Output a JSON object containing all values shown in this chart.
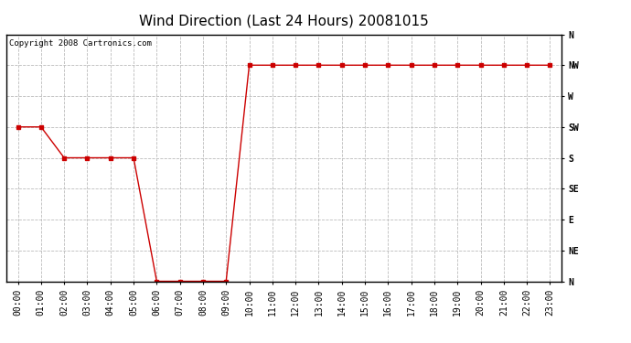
{
  "title": "Wind Direction (Last 24 Hours) 20081015",
  "copyright_text": "Copyright 2008 Cartronics.com",
  "x_labels": [
    "00:00",
    "01:00",
    "02:00",
    "03:00",
    "04:00",
    "05:00",
    "06:00",
    "07:00",
    "08:00",
    "09:00",
    "10:00",
    "11:00",
    "12:00",
    "13:00",
    "14:00",
    "15:00",
    "16:00",
    "17:00",
    "18:00",
    "19:00",
    "20:00",
    "21:00",
    "22:00",
    "23:00"
  ],
  "x_values": [
    0,
    1,
    2,
    3,
    4,
    5,
    6,
    7,
    8,
    9,
    10,
    11,
    12,
    13,
    14,
    15,
    16,
    17,
    18,
    19,
    20,
    21,
    22,
    23
  ],
  "y_values": [
    225,
    225,
    180,
    180,
    180,
    180,
    0,
    0,
    0,
    0,
    315,
    315,
    315,
    315,
    315,
    315,
    315,
    315,
    315,
    315,
    315,
    315,
    315,
    315
  ],
  "y_ticks": [
    360,
    315,
    270,
    225,
    180,
    135,
    90,
    45,
    0
  ],
  "y_tick_labels": [
    "N",
    "NW",
    "W",
    "SW",
    "S",
    "SE",
    "E",
    "NE",
    "N"
  ],
  "ylim": [
    0,
    360
  ],
  "line_color": "#cc0000",
  "marker": "s",
  "marker_size": 2.5,
  "background_color": "#ffffff",
  "grid_color": "#bbbbbb",
  "title_fontsize": 11,
  "tick_fontsize": 7,
  "copyright_fontsize": 6.5
}
